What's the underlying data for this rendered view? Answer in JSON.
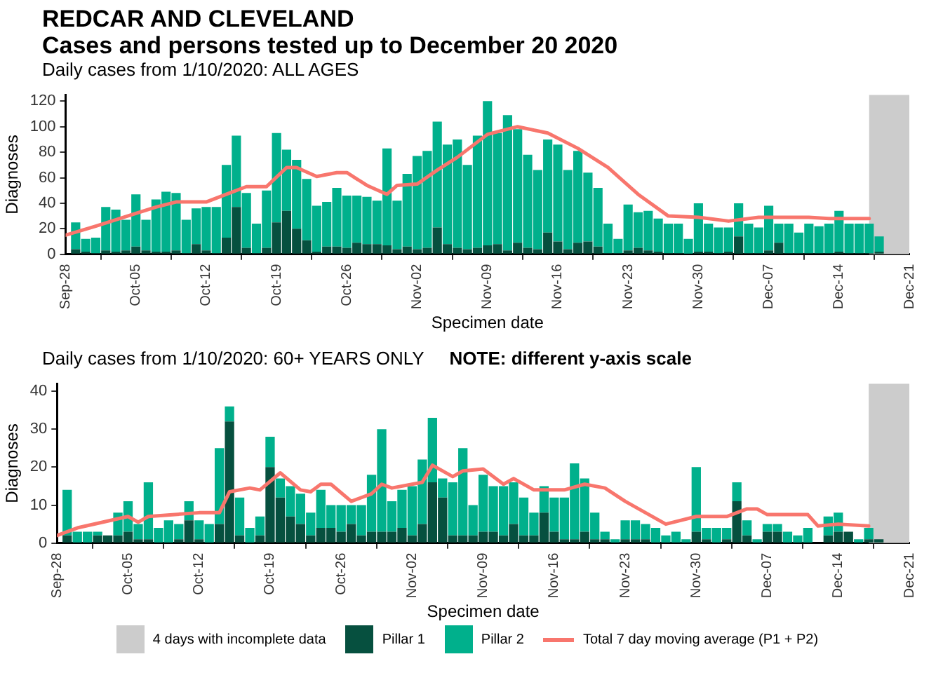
{
  "chart_data": [
    {
      "type": "bar",
      "title": "REDCAR AND CLEVELAND",
      "subtitle": "Cases and persons tested up to December 20 2020",
      "annotations": [
        "Daily cases from 1/10/2020: ALL AGES"
      ],
      "xlabel": "Specimen date",
      "ylabel": "Diagnoses",
      "stacked": true,
      "grid": false,
      "marker": "none",
      "x": [
        "2020-09-29",
        "2020-09-30",
        "2020-10-01",
        "2020-10-02",
        "2020-10-03",
        "2020-10-04",
        "2020-10-05",
        "2020-10-06",
        "2020-10-07",
        "2020-10-08",
        "2020-10-09",
        "2020-10-10",
        "2020-10-11",
        "2020-10-12",
        "2020-10-13",
        "2020-10-14",
        "2020-10-15",
        "2020-10-16",
        "2020-10-17",
        "2020-10-18",
        "2020-10-19",
        "2020-10-20",
        "2020-10-21",
        "2020-10-22",
        "2020-10-23",
        "2020-10-24",
        "2020-10-25",
        "2020-10-26",
        "2020-10-27",
        "2020-10-28",
        "2020-10-29",
        "2020-10-30",
        "2020-10-31",
        "2020-11-01",
        "2020-11-02",
        "2020-11-03",
        "2020-11-04",
        "2020-11-05",
        "2020-11-06",
        "2020-11-07",
        "2020-11-08",
        "2020-11-09",
        "2020-11-10",
        "2020-11-11",
        "2020-11-12",
        "2020-11-13",
        "2020-11-14",
        "2020-11-15",
        "2020-11-16",
        "2020-11-17",
        "2020-11-18",
        "2020-11-19",
        "2020-11-20",
        "2020-11-21",
        "2020-11-22",
        "2020-11-23",
        "2020-11-24",
        "2020-11-25",
        "2020-11-26",
        "2020-11-27",
        "2020-11-28",
        "2020-11-29",
        "2020-11-30",
        "2020-12-01",
        "2020-12-02",
        "2020-12-03",
        "2020-12-04",
        "2020-12-05",
        "2020-12-06",
        "2020-12-07",
        "2020-12-08",
        "2020-12-09",
        "2020-12-10",
        "2020-12-11",
        "2020-12-12",
        "2020-12-13",
        "2020-12-14",
        "2020-12-15",
        "2020-12-16",
        "2020-12-17",
        "2020-12-18"
      ],
      "series": [
        {
          "color": "#06503f",
          "values": [
            4,
            2,
            1,
            3,
            2,
            3,
            6,
            3,
            2,
            2,
            3,
            1,
            8,
            3,
            1,
            13,
            37,
            5,
            1,
            5,
            25,
            34,
            20,
            11,
            2,
            6,
            6,
            5,
            9,
            8,
            8,
            7,
            4,
            6,
            4,
            5,
            21,
            8,
            5,
            4,
            5,
            7,
            8,
            3,
            9,
            5,
            4,
            17,
            10,
            4,
            9,
            10,
            6,
            1,
            1,
            3,
            5,
            3,
            2,
            1,
            1,
            0,
            2,
            2,
            1,
            2,
            14,
            1,
            1,
            3,
            9,
            1,
            1,
            1,
            1,
            1,
            2,
            1,
            1,
            1,
            2
          ]
        },
        {
          "color": "#00b08c",
          "values": [
            21,
            10,
            12,
            34,
            33,
            24,
            41,
            24,
            41,
            47,
            45,
            26,
            28,
            34,
            36,
            57,
            56,
            43,
            23,
            45,
            70,
            48,
            54,
            48,
            36,
            35,
            46,
            41,
            37,
            37,
            34,
            76,
            38,
            57,
            73,
            76,
            83,
            78,
            85,
            66,
            88,
            113,
            87,
            106,
            89,
            73,
            62,
            73,
            76,
            62,
            72,
            54,
            46,
            23,
            11,
            36,
            28,
            31,
            26,
            23,
            23,
            12,
            38,
            22,
            20,
            19,
            26,
            23,
            20,
            35,
            15,
            23,
            16,
            23,
            21,
            23,
            32,
            23,
            23,
            23,
            12
          ]
        },
        {
          "type": "line",
          "color": "#f8766d",
          "x": [
            "2020-09-28",
            "2020-10-01",
            "2020-10-05",
            "2020-10-07",
            "2020-10-09",
            "2020-10-12",
            "2020-10-14",
            "2020-10-16",
            "2020-10-18",
            "2020-10-20",
            "2020-10-21",
            "2020-10-23",
            "2020-10-25",
            "2020-10-26",
            "2020-10-28",
            "2020-10-30",
            "2020-10-31",
            "2020-11-02",
            "2020-11-04",
            "2020-11-06",
            "2020-11-09",
            "2020-11-12",
            "2020-11-15",
            "2020-11-18",
            "2020-11-21",
            "2020-11-24",
            "2020-11-27",
            "2020-11-30",
            "2020-12-03",
            "2020-12-06",
            "2020-12-11",
            "2020-12-13",
            "2020-12-17"
          ],
          "values": [
            15,
            22,
            32,
            37,
            41,
            41,
            47,
            53,
            53,
            68,
            68,
            61,
            64,
            64,
            54,
            47,
            54,
            55,
            66,
            76,
            94,
            100,
            95,
            83,
            68,
            47,
            30,
            29,
            26,
            29,
            29,
            28,
            28
          ]
        }
      ],
      "xlim": [
        "2020-09-28",
        "2020-12-21"
      ],
      "xticks": [
        {
          "value": "2020-09-28",
          "label": "Sep-28"
        },
        {
          "value": "2020-10-05",
          "label": "Oct-05"
        },
        {
          "value": "2020-10-12",
          "label": "Oct-12"
        },
        {
          "value": "2020-10-19",
          "label": "Oct-19"
        },
        {
          "value": "2020-10-26",
          "label": "Oct-26"
        },
        {
          "value": "2020-11-02",
          "label": "Nov-02"
        },
        {
          "value": "2020-11-09",
          "label": "Nov-09"
        },
        {
          "value": "2020-11-16",
          "label": "Nov-16"
        },
        {
          "value": "2020-11-23",
          "label": "Nov-23"
        },
        {
          "value": "2020-11-30",
          "label": "Nov-30"
        },
        {
          "value": "2020-12-07",
          "label": "Dec-07"
        },
        {
          "value": "2020-12-14",
          "label": "Dec-14"
        },
        {
          "value": "2020-12-21",
          "label": "Dec-21"
        }
      ],
      "ylim": [
        0,
        125
      ],
      "yticks": [
        0,
        20,
        40,
        60,
        80,
        100,
        120
      ],
      "bands": [
        {
          "axis": "x",
          "from": "2020-12-17",
          "to": "2020-12-21",
          "color": "#cccccc"
        }
      ]
    },
    {
      "type": "bar",
      "title": "Daily cases from 1/10/2020: 60+ YEARS ONLY",
      "annotations": [
        "NOTE: different y-axis scale"
      ],
      "xlabel": "Specimen date",
      "ylabel": "Diagnoses",
      "stacked": true,
      "grid": false,
      "marker": "none",
      "legend": "bottom",
      "x": [
        "2020-09-29",
        "2020-09-30",
        "2020-10-01",
        "2020-10-02",
        "2020-10-03",
        "2020-10-04",
        "2020-10-05",
        "2020-10-06",
        "2020-10-07",
        "2020-10-08",
        "2020-10-09",
        "2020-10-10",
        "2020-10-11",
        "2020-10-12",
        "2020-10-13",
        "2020-10-14",
        "2020-10-15",
        "2020-10-16",
        "2020-10-17",
        "2020-10-18",
        "2020-10-19",
        "2020-10-20",
        "2020-10-21",
        "2020-10-22",
        "2020-10-23",
        "2020-10-24",
        "2020-10-25",
        "2020-10-26",
        "2020-10-27",
        "2020-10-28",
        "2020-10-29",
        "2020-10-30",
        "2020-10-31",
        "2020-11-01",
        "2020-11-02",
        "2020-11-03",
        "2020-11-04",
        "2020-11-05",
        "2020-11-06",
        "2020-11-07",
        "2020-11-08",
        "2020-11-09",
        "2020-11-10",
        "2020-11-11",
        "2020-11-12",
        "2020-11-13",
        "2020-11-14",
        "2020-11-15",
        "2020-11-16",
        "2020-11-17",
        "2020-11-18",
        "2020-11-19",
        "2020-11-20",
        "2020-11-21",
        "2020-11-22",
        "2020-11-23",
        "2020-11-24",
        "2020-11-25",
        "2020-11-26",
        "2020-11-27",
        "2020-11-28",
        "2020-11-29",
        "2020-11-30",
        "2020-12-01",
        "2020-12-02",
        "2020-12-03",
        "2020-12-04",
        "2020-12-05",
        "2020-12-06",
        "2020-12-07",
        "2020-12-08",
        "2020-12-09",
        "2020-12-10",
        "2020-12-11",
        "2020-12-12",
        "2020-12-13",
        "2020-12-14",
        "2020-12-15",
        "2020-12-16",
        "2020-12-17",
        "2020-12-18"
      ],
      "series": [
        {
          "name": "Pillar 1",
          "color": "#06503f",
          "values": [
            2,
            0,
            0,
            2,
            2,
            2,
            3,
            1,
            1,
            0,
            0,
            1,
            6,
            1,
            0,
            5,
            32,
            2,
            0,
            2,
            20,
            12,
            7,
            5,
            2,
            4,
            4,
            3,
            5,
            2,
            3,
            3,
            3,
            4,
            2,
            5,
            16,
            12,
            2,
            2,
            2,
            3,
            3,
            2,
            5,
            2,
            2,
            8,
            3,
            1,
            1,
            3,
            1,
            1,
            0,
            1,
            1,
            1,
            0,
            0,
            0,
            0,
            3,
            1,
            0,
            1,
            11,
            2,
            0,
            3,
            3,
            0,
            0,
            0,
            0,
            2,
            3,
            3,
            0,
            1,
            1
          ]
        },
        {
          "name": "Pillar 2",
          "color": "#00b08c",
          "values": [
            12,
            3,
            3,
            1,
            0,
            6,
            8,
            4,
            15,
            4,
            6,
            4,
            5,
            5,
            5,
            20,
            4,
            10,
            4,
            5,
            8,
            5,
            8,
            8,
            6,
            10,
            6,
            7,
            5,
            8,
            15,
            27,
            8,
            10,
            13,
            17,
            17,
            5,
            14,
            23,
            8,
            15,
            12,
            13,
            11,
            10,
            6,
            7,
            9,
            11,
            20,
            14,
            7,
            2,
            1,
            5,
            5,
            4,
            4,
            2,
            3,
            1,
            17,
            3,
            4,
            3,
            5,
            4,
            1,
            2,
            2,
            3,
            2,
            4,
            0,
            5,
            5,
            0,
            1,
            3,
            0
          ]
        },
        {
          "name": "Total 7 day moving average (P1 + P2)",
          "type": "line",
          "color": "#f8766d",
          "x": [
            "2020-09-28",
            "2020-09-30",
            "2020-10-05",
            "2020-10-06",
            "2020-10-07",
            "2020-10-12",
            "2020-10-14",
            "2020-10-15",
            "2020-10-17",
            "2020-10-18",
            "2020-10-20",
            "2020-10-22",
            "2020-10-23",
            "2020-10-24",
            "2020-10-25",
            "2020-10-27",
            "2020-10-29",
            "2020-10-30",
            "2020-10-31",
            "2020-11-03",
            "2020-11-04",
            "2020-11-06",
            "2020-11-07",
            "2020-11-09",
            "2020-11-11",
            "2020-11-12",
            "2020-11-14",
            "2020-11-17",
            "2020-11-19",
            "2020-11-21",
            "2020-11-23",
            "2020-11-27",
            "2020-11-30",
            "2020-12-03",
            "2020-12-05",
            "2020-12-06",
            "2020-12-07",
            "2020-12-11",
            "2020-12-12",
            "2020-12-14",
            "2020-12-17"
          ],
          "values": [
            2,
            4,
            7,
            5.5,
            7,
            8,
            8,
            13.5,
            14.5,
            14,
            18.5,
            14,
            13.5,
            15.5,
            15.5,
            11,
            13,
            15.5,
            14.5,
            16,
            20.5,
            17.5,
            19,
            19.5,
            15.5,
            17,
            14,
            14,
            15.5,
            14.5,
            11,
            5,
            7,
            7,
            9,
            9,
            7.5,
            7.5,
            4.5,
            5,
            4.5
          ]
        }
      ],
      "xlim": [
        "2020-09-28",
        "2020-12-21"
      ],
      "xticks": [
        {
          "value": "2020-09-28",
          "label": "Sep-28"
        },
        {
          "value": "2020-10-05",
          "label": "Oct-05"
        },
        {
          "value": "2020-10-12",
          "label": "Oct-12"
        },
        {
          "value": "2020-10-19",
          "label": "Oct-19"
        },
        {
          "value": "2020-10-26",
          "label": "Oct-26"
        },
        {
          "value": "2020-11-02",
          "label": "Nov-02"
        },
        {
          "value": "2020-11-09",
          "label": "Nov-09"
        },
        {
          "value": "2020-11-16",
          "label": "Nov-16"
        },
        {
          "value": "2020-11-23",
          "label": "Nov-23"
        },
        {
          "value": "2020-11-30",
          "label": "Nov-30"
        },
        {
          "value": "2020-12-07",
          "label": "Dec-07"
        },
        {
          "value": "2020-12-14",
          "label": "Dec-14"
        },
        {
          "value": "2020-12-21",
          "label": "Dec-21"
        }
      ],
      "ylim": [
        0,
        42
      ],
      "yticks": [
        0,
        10,
        20,
        30,
        40
      ],
      "bands": [
        {
          "axis": "x",
          "from": "2020-12-17",
          "to": "2020-12-21",
          "label": "4 days with incomplete data",
          "color": "#cccccc"
        }
      ]
    }
  ]
}
